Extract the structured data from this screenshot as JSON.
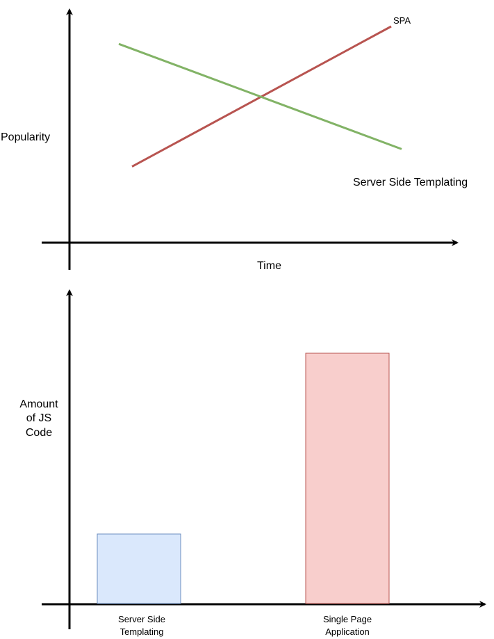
{
  "chart_data": [
    {
      "type": "line",
      "title": "",
      "xlabel": "Time",
      "ylabel": "Popularity",
      "grid": false,
      "legend": "none",
      "x": [
        0,
        1
      ],
      "series": [
        {
          "name": "SPA",
          "values": [
            0.2,
            1.0
          ],
          "color": "#b85450"
        },
        {
          "name": "Server Side Templating",
          "values": [
            0.9,
            0.3
          ],
          "color": "#82b366"
        }
      ]
    },
    {
      "type": "bar",
      "title": "",
      "xlabel": "",
      "ylabel_lines": [
        "Amount",
        "of JS",
        "Code"
      ],
      "grid": false,
      "legend": "none",
      "categories": [
        "Server Side Templating",
        "Single Page Application"
      ],
      "category_lines": [
        [
          "Server Side",
          "Templating"
        ],
        [
          "Single Page",
          "Application"
        ]
      ],
      "values": [
        1,
        3.6
      ],
      "colors": [
        {
          "fill": "#dae8fc",
          "stroke": "#6c8ebf"
        },
        {
          "fill": "#f8cecc",
          "stroke": "#b85450"
        }
      ]
    }
  ]
}
